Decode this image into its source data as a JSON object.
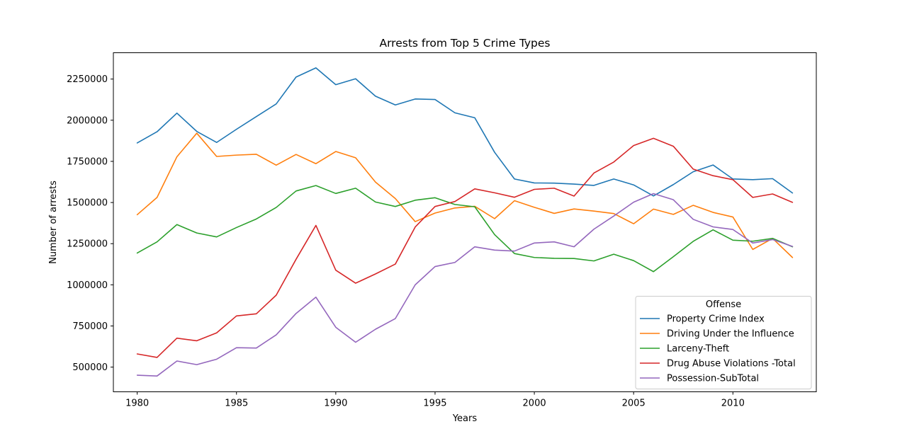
{
  "chart_data": {
    "type": "line",
    "title": "Arrests from Top 5 Crime Types",
    "xlabel": "Years",
    "ylabel": "Number of arrests",
    "xlim": [
      1978.8,
      2014.2
    ],
    "ylim": [
      350000,
      2410000
    ],
    "xticks": [
      1980,
      1985,
      1990,
      1995,
      2000,
      2005,
      2010
    ],
    "yticks": [
      500000,
      750000,
      1000000,
      1250000,
      1500000,
      1750000,
      2000000,
      2250000
    ],
    "grid": false,
    "legend": {
      "title": "Offense",
      "placement": "lower-right"
    },
    "x": [
      1980,
      1981,
      1982,
      1983,
      1984,
      1985,
      1986,
      1987,
      1988,
      1989,
      1990,
      1991,
      1992,
      1993,
      1994,
      1995,
      1996,
      1997,
      1998,
      1999,
      2000,
      2001,
      2002,
      2003,
      2004,
      2005,
      2006,
      2007,
      2008,
      2009,
      2010,
      2011,
      2012,
      2013
    ],
    "series": [
      {
        "name": "Property Crime Index",
        "color": "#1f77b4",
        "values": [
          1862000,
          1930000,
          2043000,
          1932000,
          1865000,
          1945000,
          2022000,
          2099000,
          2262000,
          2318000,
          2216000,
          2252000,
          2146000,
          2093000,
          2129000,
          2126000,
          2045000,
          2015000,
          1805000,
          1643000,
          1619000,
          1618000,
          1612000,
          1604000,
          1643000,
          1607000,
          1540000,
          1609000,
          1687000,
          1728000,
          1643000,
          1639000,
          1645000,
          1558000
        ]
      },
      {
        "name": "Driving Under the Influence",
        "color": "#ff7f0e",
        "values": [
          1426000,
          1531000,
          1778000,
          1921000,
          1780000,
          1788000,
          1793000,
          1727000,
          1792000,
          1736000,
          1810000,
          1772000,
          1624000,
          1524000,
          1384000,
          1436000,
          1467000,
          1477000,
          1402000,
          1511000,
          1471000,
          1434000,
          1461000,
          1448000,
          1433000,
          1371000,
          1460000,
          1428000,
          1483000,
          1440000,
          1412000,
          1215000,
          1282000,
          1166000
        ]
      },
      {
        "name": "Larceny-Theft",
        "color": "#2ca02c",
        "values": [
          1193000,
          1261000,
          1366000,
          1315000,
          1291000,
          1348000,
          1400000,
          1470000,
          1570000,
          1603000,
          1555000,
          1587000,
          1503000,
          1476000,
          1514000,
          1529000,
          1488000,
          1474000,
          1305000,
          1190000,
          1166000,
          1161000,
          1160000,
          1145000,
          1186000,
          1147000,
          1080000,
          1171000,
          1264000,
          1334000,
          1271000,
          1265000,
          1282000,
          1231000
        ]
      },
      {
        "name": "Drug Abuse Violations -Total",
        "color": "#d62728",
        "values": [
          580000,
          559000,
          676000,
          660000,
          708000,
          811000,
          824000,
          937000,
          1155000,
          1361000,
          1089000,
          1010000,
          1066000,
          1126000,
          1351000,
          1476000,
          1506000,
          1583000,
          1559000,
          1532000,
          1580000,
          1587000,
          1539000,
          1679000,
          1746000,
          1846000,
          1890000,
          1842000,
          1703000,
          1663000,
          1639000,
          1531000,
          1552000,
          1501000
        ]
      },
      {
        "name": "Possession-SubTotal",
        "color": "#9467bd",
        "values": [
          451000,
          446000,
          537000,
          515000,
          548000,
          618000,
          616000,
          696000,
          826000,
          925000,
          742000,
          651000,
          730000,
          795000,
          1000000,
          1111000,
          1136000,
          1231000,
          1211000,
          1205000,
          1254000,
          1261000,
          1231000,
          1338000,
          1418000,
          1502000,
          1554000,
          1517000,
          1398000,
          1352000,
          1336000,
          1254000,
          1275000,
          1233000
        ]
      }
    ]
  }
}
